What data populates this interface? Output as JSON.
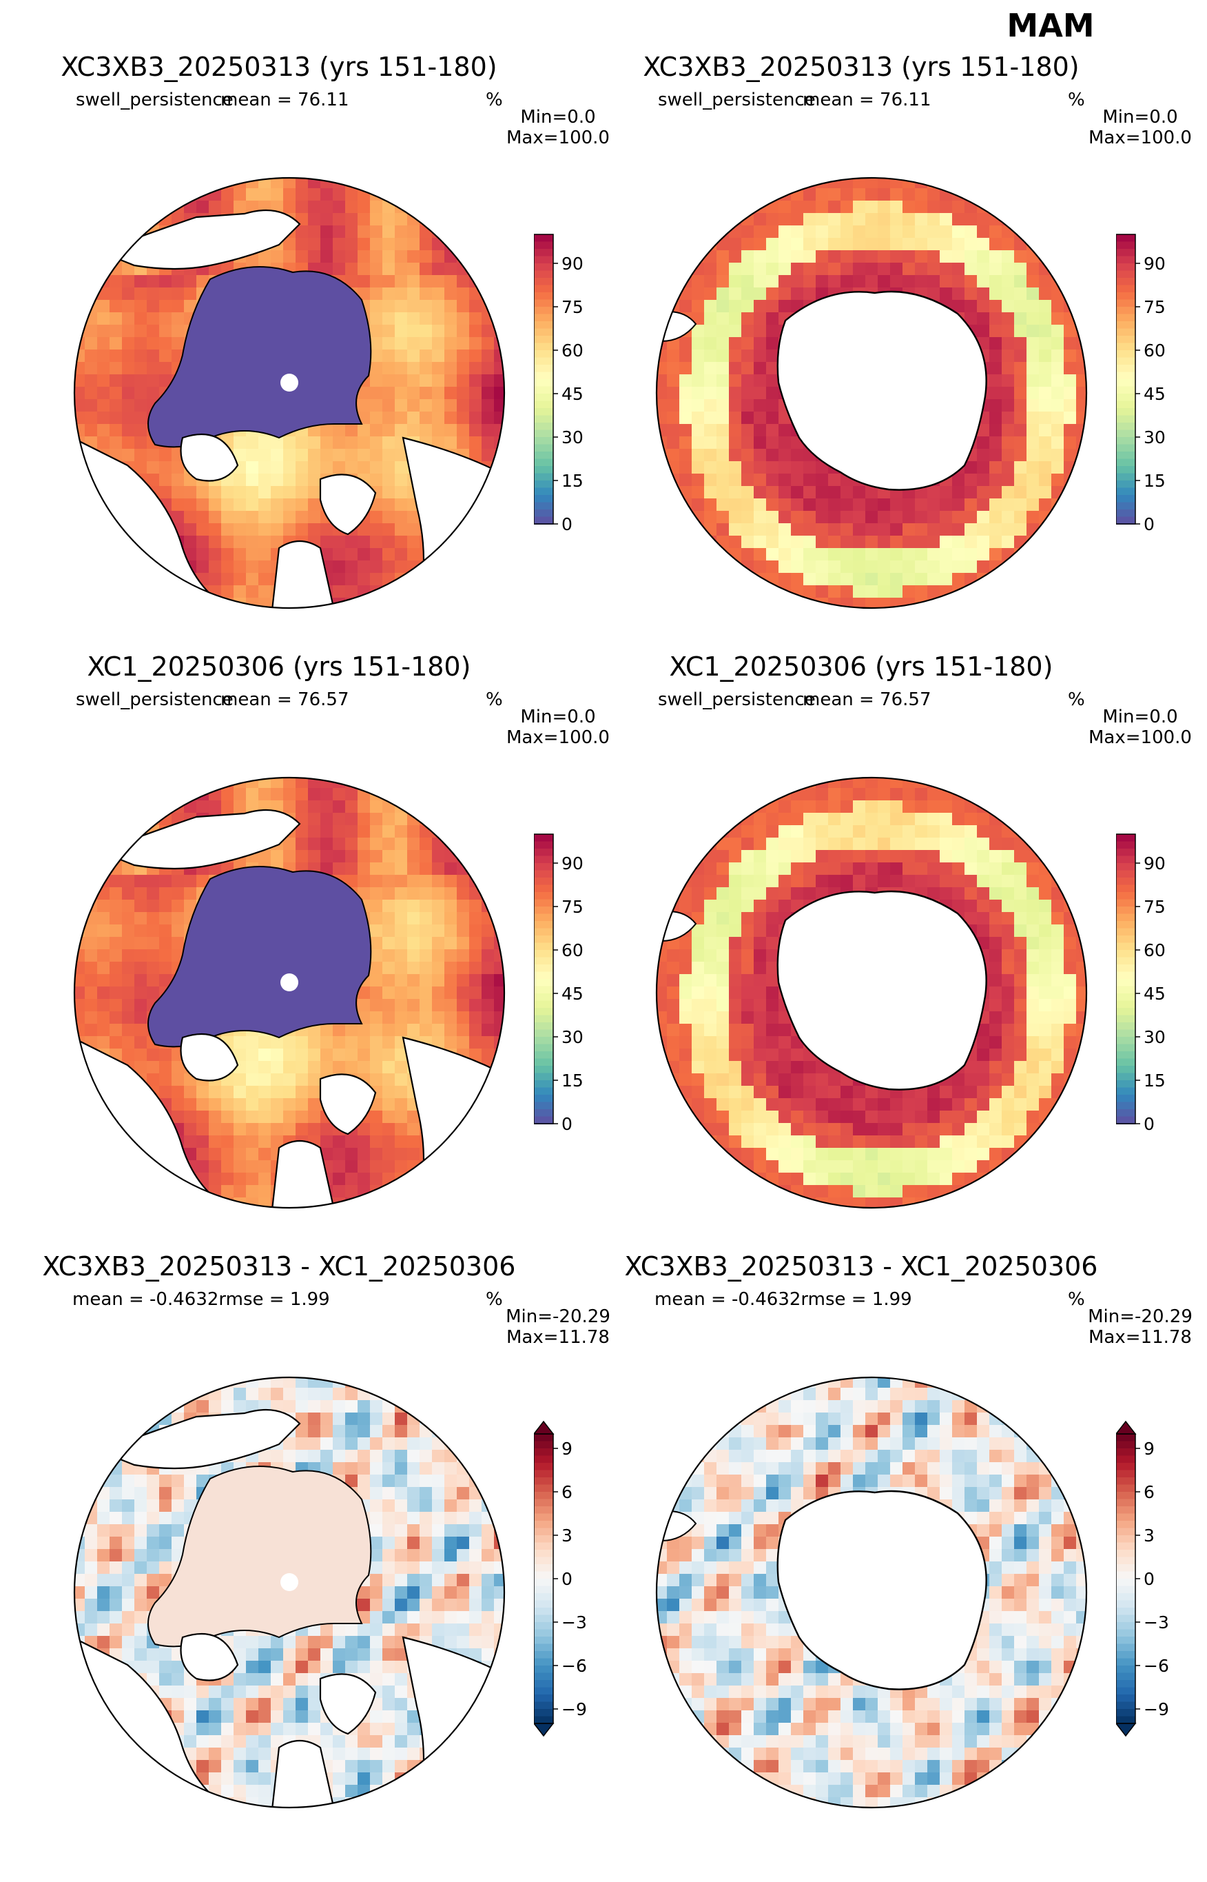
{
  "figure": {
    "season": "MAM"
  },
  "colors": {
    "land": "#ffffff",
    "ice_interior": "#5e4fa2",
    "coast": "#000000"
  },
  "colorbars": {
    "spectral": {
      "ticks": [
        "0",
        "15",
        "30",
        "45",
        "60",
        "75",
        "90"
      ],
      "tick_values": [
        0,
        15,
        30,
        45,
        60,
        75,
        90
      ],
      "vmin": 0,
      "vmax": 100,
      "colors": [
        "#5e4fa2",
        "#3288bd",
        "#66c2a5",
        "#abdda4",
        "#e6f598",
        "#ffffbf",
        "#fee08b",
        "#fdae61",
        "#f46d43",
        "#d53e4f",
        "#9e0142"
      ]
    },
    "diverging": {
      "ticks": [
        "9",
        "6",
        "3",
        "0",
        "−3",
        "−6",
        "−9"
      ],
      "tick_values": [
        9,
        6,
        3,
        0,
        -3,
        -6,
        -9
      ],
      "vmin": -10,
      "vmax": 10,
      "colors": [
        "#053061",
        "#2166ac",
        "#4393c3",
        "#92c5de",
        "#d1e5f0",
        "#f7f7f7",
        "#fddbc7",
        "#f4a582",
        "#d6604d",
        "#b2182b",
        "#67001f"
      ]
    }
  },
  "chart_data": [
    {
      "type": "heatmap",
      "projection": "north polar stereographic",
      "title": "XC3XB3_20250313 (yrs 151-180)",
      "variable": "swell_persistence",
      "stat": "mean = 76.11",
      "units": "%",
      "min_label": "Min=0.0",
      "max_label": "Max=100.0",
      "colorbar": "spectral",
      "clim": [
        0,
        100
      ]
    },
    {
      "type": "heatmap",
      "projection": "south polar stereographic",
      "title": "XC3XB3_20250313 (yrs 151-180)",
      "variable": "swell_persistence",
      "stat": "mean = 76.11",
      "units": "%",
      "min_label": "Min=0.0",
      "max_label": "Max=100.0",
      "colorbar": "spectral",
      "clim": [
        0,
        100
      ]
    },
    {
      "type": "heatmap",
      "projection": "north polar stereographic",
      "title": "XC1_20250306 (yrs 151-180)",
      "variable": "swell_persistence",
      "stat": "mean = 76.57",
      "units": "%",
      "min_label": "Min=0.0",
      "max_label": "Max=100.0",
      "colorbar": "spectral",
      "clim": [
        0,
        100
      ]
    },
    {
      "type": "heatmap",
      "projection": "south polar stereographic",
      "title": "XC1_20250306 (yrs 151-180)",
      "variable": "swell_persistence",
      "stat": "mean = 76.57",
      "units": "%",
      "min_label": "Min=0.0",
      "max_label": "Max=100.0",
      "colorbar": "spectral",
      "clim": [
        0,
        100
      ]
    },
    {
      "type": "heatmap",
      "projection": "north polar stereographic",
      "title": "XC3XB3_20250313 - XC1_20250306",
      "variable": "",
      "stat": "mean = -0.4632rmse = 1.99",
      "units": "%",
      "min_label": "Min=-20.29",
      "max_label": "Max=11.78",
      "colorbar": "diverging",
      "clim": [
        -10,
        10
      ]
    },
    {
      "type": "heatmap",
      "projection": "south polar stereographic",
      "title": "XC3XB3_20250313 - XC1_20250306",
      "variable": "",
      "stat": "mean = -0.4632rmse = 1.99",
      "units": "%",
      "min_label": "Min=-20.29",
      "max_label": "Max=11.78",
      "colorbar": "diverging",
      "clim": [
        -10,
        10
      ]
    }
  ]
}
